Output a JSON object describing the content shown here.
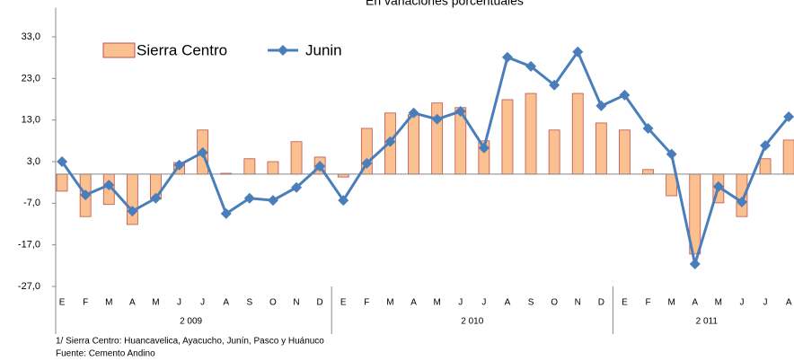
{
  "chart_data": {
    "type": "bar_line",
    "subtitle": "En variaciones porcentuales",
    "categories": [
      "E",
      "F",
      "M",
      "A",
      "M",
      "J",
      "J",
      "A",
      "S",
      "O",
      "N",
      "D",
      "E",
      "F",
      "M",
      "A",
      "M",
      "J",
      "J",
      "A",
      "S",
      "O",
      "N",
      "D",
      "E",
      "F",
      "M",
      "A",
      "M",
      "J",
      "J",
      "A"
    ],
    "category_groups": [
      "2 009",
      "2 010",
      "2 011"
    ],
    "series": [
      {
        "name": "Sierra Centro",
        "type": "bar",
        "color": "#fac090",
        "values": [
          -4.1,
          -10.2,
          -7.3,
          -12.1,
          -6.0,
          2.8,
          10.6,
          0.2,
          3.7,
          3.0,
          7.8,
          4.1,
          -0.7,
          11.0,
          14.7,
          14.3,
          17.1,
          16.0,
          8.0,
          17.9,
          19.4,
          10.6,
          19.4,
          12.3,
          10.6,
          1.1,
          -5.2,
          -19.2,
          -6.9,
          -10.2,
          3.7,
          8.2
        ]
      },
      {
        "name": "Junin",
        "type": "line",
        "color": "#4a7ebb",
        "values": [
          3.0,
          -5.0,
          -2.6,
          -8.9,
          -5.8,
          2.2,
          5.2,
          -9.5,
          -5.8,
          -6.3,
          -3.2,
          1.9,
          -6.3,
          2.6,
          7.8,
          14.7,
          13.2,
          15.1,
          6.3,
          28.1,
          25.9,
          21.4,
          29.4,
          16.4,
          19.0,
          11.0,
          4.8,
          -21.6,
          -3.0,
          -6.7,
          6.9,
          13.8
        ]
      }
    ],
    "ylim": [
      -27,
      40
    ],
    "yticks": [
      {
        "value": 33,
        "label": "33,0"
      },
      {
        "value": 23,
        "label": "23,0"
      },
      {
        "value": 13,
        "label": "13,0"
      },
      {
        "value": 3,
        "label": "3,0"
      },
      {
        "value": -7,
        "label": "-7,0"
      },
      {
        "value": -17,
        "label": "-17,0"
      },
      {
        "value": -27,
        "label": "-27,0"
      }
    ],
    "legend": "upper left",
    "notes": [
      "1/ Sierra Centro: Huancavelica,  Ayacucho, Junín, Pasco y Huánuco",
      "Fuente: Cemento Andino"
    ]
  }
}
